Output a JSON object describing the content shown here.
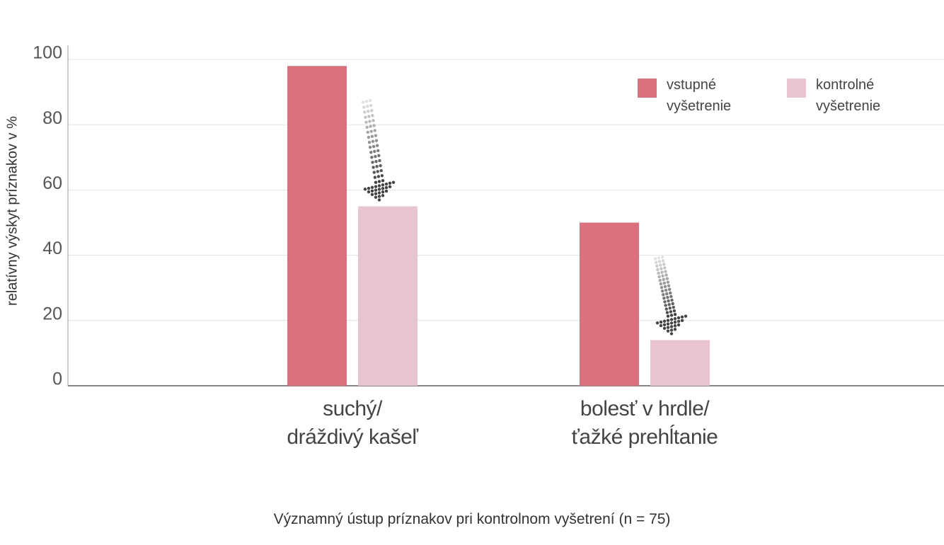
{
  "chart_data": {
    "type": "bar",
    "y_label": "relatívny výskyt príznakov v %",
    "caption": "Významný ústup príznakov pri kontrolnom vyšetrení (n = 75)",
    "categories": [
      "suchý/\ndráždivý kašeľ",
      "bolesť v hrdle/\nťažké prehĺtanie"
    ],
    "series": [
      {
        "name": "vstupné vyšetrenie",
        "color": "#d9727e",
        "values": [
          98,
          50
        ]
      },
      {
        "name": "kontrolné vyšetrenie",
        "color": "#e8c4ce",
        "values": [
          55,
          14
        ]
      }
    ],
    "ylim": [
      0,
      100
    ],
    "yticks": [
      0,
      20,
      40,
      60,
      80,
      100
    ],
    "grid": true,
    "legend": "top-right"
  }
}
